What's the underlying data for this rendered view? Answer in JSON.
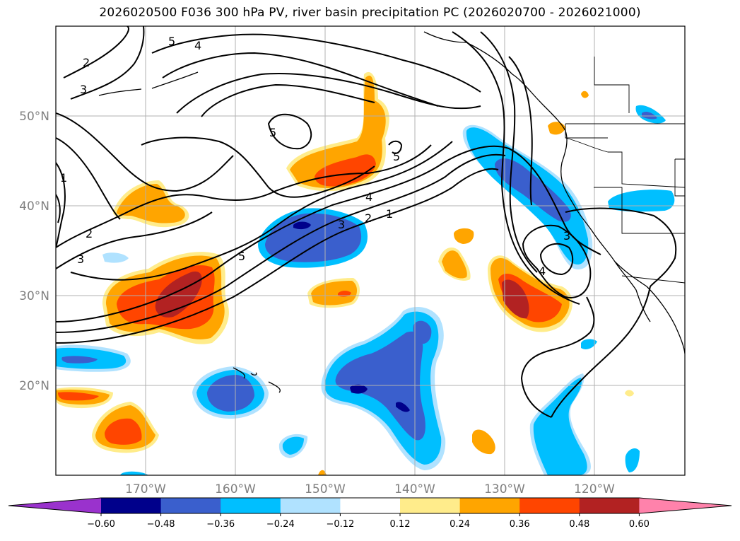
{
  "title": "2026020500 F036 300 hPa PV, river basin precipitation PC (2026020700 - 2026021000)",
  "map": {
    "lon_range": [
      -180,
      -110
    ],
    "lat_range": [
      10,
      60
    ],
    "lat_ticks": [
      "50°N",
      "40°N",
      "30°N",
      "20°N"
    ],
    "lon_ticks": [
      "170°W",
      "160°W",
      "150°W",
      "140°W",
      "130°W",
      "120°W"
    ],
    "pv_contour_labels": [
      "5",
      "4",
      "2",
      "3",
      "5",
      "5",
      "1",
      "2",
      "3",
      "5",
      "4",
      "3",
      "2",
      "1",
      "3",
      "4"
    ],
    "grid": "on"
  },
  "colorbar": {
    "ticks": [
      "−0.60",
      "−0.48",
      "−0.36",
      "−0.24",
      "−0.12",
      "0.12",
      "0.24",
      "0.36",
      "0.48",
      "0.60"
    ],
    "colors": [
      "#9a32cd",
      "#00008b",
      "#3a5fcd",
      "#00bfff",
      "#b0e2ff",
      "#ffffff",
      "#ffec8b",
      "#ffa500",
      "#ff4500",
      "#b22222",
      "#ff82ab"
    ]
  }
}
